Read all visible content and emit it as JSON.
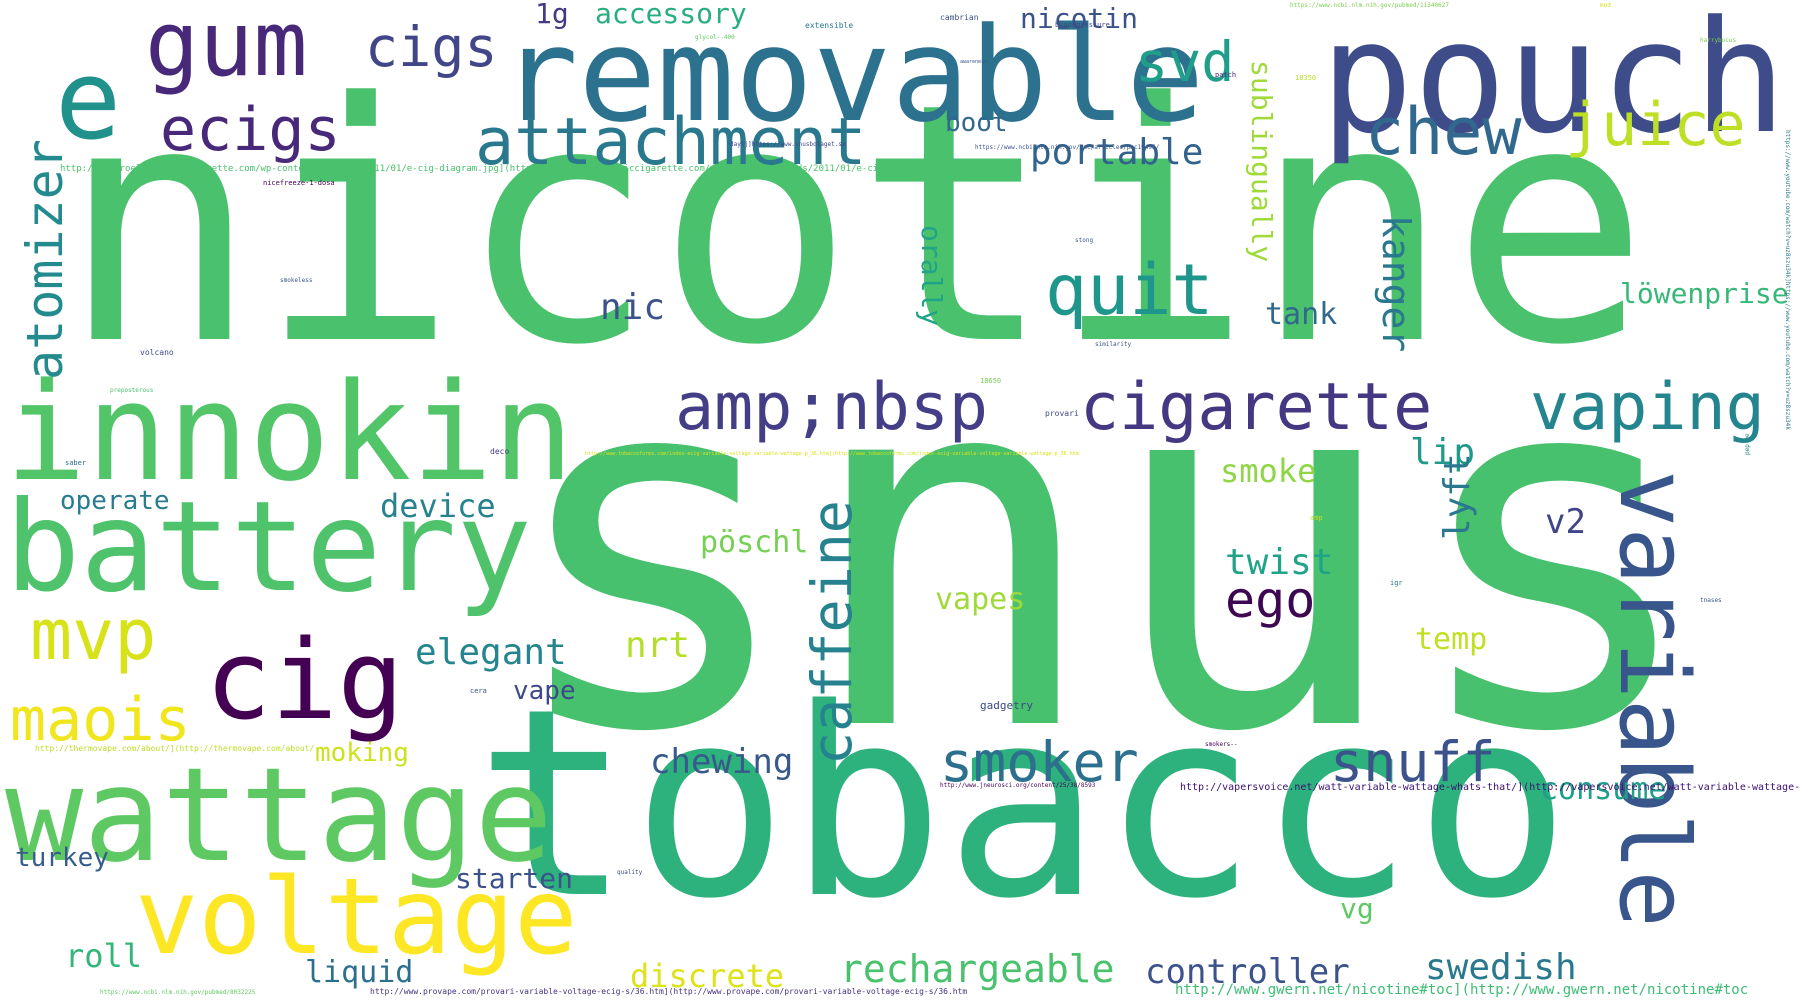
{
  "words": [
    {
      "text": "snus",
      "color": "#48c16e"
    },
    {
      "text": "nicotine",
      "color": "#4ac16d"
    },
    {
      "text": "tobacco",
      "color": "#2db27d"
    },
    {
      "text": "pouch",
      "color": "#3e4c8a"
    },
    {
      "text": "removable",
      "color": "#2c718e"
    },
    {
      "text": "innokin",
      "color": "#52c569"
    },
    {
      "text": "battery",
      "color": "#4ec36b"
    },
    {
      "text": "wattage",
      "color": "#5ec962"
    },
    {
      "text": "voltage",
      "color": "#fde725"
    },
    {
      "text": "variable",
      "color": "#39568c"
    },
    {
      "text": "cig",
      "color": "#440154"
    },
    {
      "text": "gum",
      "color": "#482878"
    },
    {
      "text": "e",
      "color": "#21918c"
    },
    {
      "text": "attachment",
      "color": "#2a788e"
    },
    {
      "text": "ecigs",
      "color": "#482878"
    },
    {
      "text": "cigs",
      "color": "#404688"
    },
    {
      "text": "svd",
      "color": "#1f9e89"
    },
    {
      "text": "chew",
      "color": "#31688e"
    },
    {
      "text": "juice",
      "color": "#bddf26"
    },
    {
      "text": "quit",
      "color": "#1f968b"
    },
    {
      "text": "amp;nbsp",
      "color": "#433e85"
    },
    {
      "text": "cigarette",
      "color": "#453781"
    },
    {
      "text": "vaping",
      "color": "#25858e"
    },
    {
      "text": "atomizer",
      "color": "#238a8d"
    },
    {
      "text": "mvp",
      "color": "#d8e219"
    },
    {
      "text": "maois",
      "color": "#f1e51d"
    },
    {
      "text": "caffeine",
      "color": "#26828e"
    },
    {
      "text": "smoker",
      "color": "#2d708e"
    },
    {
      "text": "snuff",
      "color": "#3b528b"
    },
    {
      "text": "ego",
      "color": "#3e0751"
    },
    {
      "text": "accessory",
      "color": "#29af7f"
    },
    {
      "text": "1g",
      "color": "#443983"
    },
    {
      "text": "nicotin",
      "color": "#3b528b"
    },
    {
      "text": "portable",
      "color": "#33638d"
    },
    {
      "text": "boot",
      "color": "#31688e"
    },
    {
      "text": "sublingually",
      "color": "#9fda3a"
    },
    {
      "text": "orally",
      "color": "#20a386"
    },
    {
      "text": "nic",
      "color": "#3b528b"
    },
    {
      "text": "tank",
      "color": "#31688e"
    },
    {
      "text": "kanger",
      "color": "#2a788e"
    },
    {
      "text": "löwenprise",
      "color": "#37b878"
    },
    {
      "text": "lip",
      "color": "#1f9a8a"
    },
    {
      "text": "smoke",
      "color": "#8ed645"
    },
    {
      "text": "v2",
      "color": "#404688"
    },
    {
      "text": "operate",
      "color": "#287c8e"
    },
    {
      "text": "device",
      "color": "#26828e"
    },
    {
      "text": "pöschl",
      "color": "#75d054"
    },
    {
      "text": "twist",
      "color": "#20a386"
    },
    {
      "text": "lyft",
      "color": "#2a788e"
    },
    {
      "text": "vapes",
      "color": "#a0da39"
    },
    {
      "text": "elegant",
      "color": "#25858e"
    },
    {
      "text": "nrt",
      "color": "#b5de2b"
    },
    {
      "text": "temp",
      "color": "#c2df23"
    },
    {
      "text": "vape",
      "color": "#3e4989"
    },
    {
      "text": "moking",
      "color": "#cde11d"
    },
    {
      "text": "chewing",
      "color": "#38598c"
    },
    {
      "text": "consume",
      "color": "#1f9e89"
    },
    {
      "text": "turkey",
      "color": "#365c8d"
    },
    {
      "text": "starten",
      "color": "#3b528b"
    },
    {
      "text": "vg",
      "color": "#5ec962"
    },
    {
      "text": "roll",
      "color": "#34b679"
    },
    {
      "text": "liquid",
      "color": "#2d708e"
    },
    {
      "text": "discrete",
      "color": "#dde318"
    },
    {
      "text": "rechargeable",
      "color": "#4ac16d"
    },
    {
      "text": "controller",
      "color": "#3b528b"
    },
    {
      "text": "swedish",
      "color": "#2a788e"
    },
    {
      "text": "http://www.gwern.net/nicotine#toc](http://www.gwern.net/nicotine#toc",
      "color": "#3dbc74"
    },
    {
      "text": "http://vapersvoice.net/watt-variable-wattage-whats-that/](http://vapersvoice.net/watt-variable-wattage-whats-that/",
      "color": "#3b0f70"
    },
    {
      "text": "http://www.provape.com/provari-variable-voltage-ecig-s/36.htm](http://www.provape.com/provari-variable-voltage-ecig-s/36.htm",
      "color": "#46327e"
    },
    {
      "text": "http://1microelectroniccigarette.com/wp-content/uploads/2011/01/e-cig-diagram.jpg](http://1microelectroniccigarette.com/wp-content/uploads/2011/01/e-cig-diagram.jpg",
      "color": "#4ac16d"
    },
    {
      "text": "http://thermovape.com/about/](http://thermovape.com/about/",
      "color": "#bddf26"
    },
    {
      "text": "https://www.ncbi.nlm.nih.gov/pmc/articles/pmc19495/",
      "color": "#3b528b"
    },
    {
      "text": "http://www.jneurosci.org/content/25/38/8593",
      "color": "#440154"
    },
    {
      "text": "https://www.ncbi.nlm.nih.gov/pubmed/8032225",
      "color": "#5ec962"
    },
    {
      "text": "https://www.ncbi.nlm.nih.gov/pubmed/11340627",
      "color": "#7ad151"
    },
    {
      "text": "http://www.tobaccoforms.com/index-ecig-variable-voltage-variable-wattage-p_36.htm](http://www.tobaccoforms.com/index-ecig-variable-voltage-variable-wattage-p_36.htm",
      "color": "#d8e219"
    },
    {
      "text": "daylj]https://www.snusbolaget.se",
      "color": "#404688"
    },
    {
      "text": "https://www.youtube.com/watch?v=uz8szu34k]https://www.youtube.com/watch?v=uz8szu34k",
      "color": "#2a788e"
    },
    {
      "text": "extensible",
      "color": "#2a788e"
    },
    {
      "text": "cambrian",
      "color": "#3b528b"
    },
    {
      "text": "bloodpressure",
      "color": "#3e4989"
    },
    {
      "text": "patch",
      "color": "#482878"
    },
    {
      "text": "glycol--400",
      "color": "#5ec962"
    },
    {
      "text": "nicefreeze-1-dosa",
      "color": "#440154"
    },
    {
      "text": "smokeless",
      "color": "#3b528b"
    },
    {
      "text": "volcano",
      "color": "#3e4989"
    },
    {
      "text": "preposterous",
      "color": "#4ac16d"
    },
    {
      "text": "saber",
      "color": "#31688e"
    },
    {
      "text": "deco",
      "color": "#443983"
    },
    {
      "text": "provari",
      "color": "#3e4989"
    },
    {
      "text": "similarity",
      "color": "#3b528b"
    },
    {
      "text": "stong",
      "color": "#38598c"
    },
    {
      "text": "18650",
      "color": "#75d054"
    },
    {
      "text": "18350",
      "color": "#b5de2b"
    },
    {
      "text": "awareness",
      "color": "#3b528b"
    },
    {
      "text": "gadgetry",
      "color": "#3e4989"
    },
    {
      "text": "cera",
      "color": "#3b528b"
    },
    {
      "text": "quality",
      "color": "#3e4989"
    },
    {
      "text": "smokers--",
      "color": "#440154"
    },
    {
      "text": "igr",
      "color": "#2a788e"
    },
    {
      "text": "amp",
      "color": "#bddf26"
    },
    {
      "text": "harrybucus",
      "color": "#7ad151"
    },
    {
      "text": "mod",
      "color": "#d8e219"
    },
    {
      "text": "tnases",
      "color": "#3b528b"
    },
    {
      "text": "pep-pe",
      "color": "#238a8d"
    }
  ]
}
